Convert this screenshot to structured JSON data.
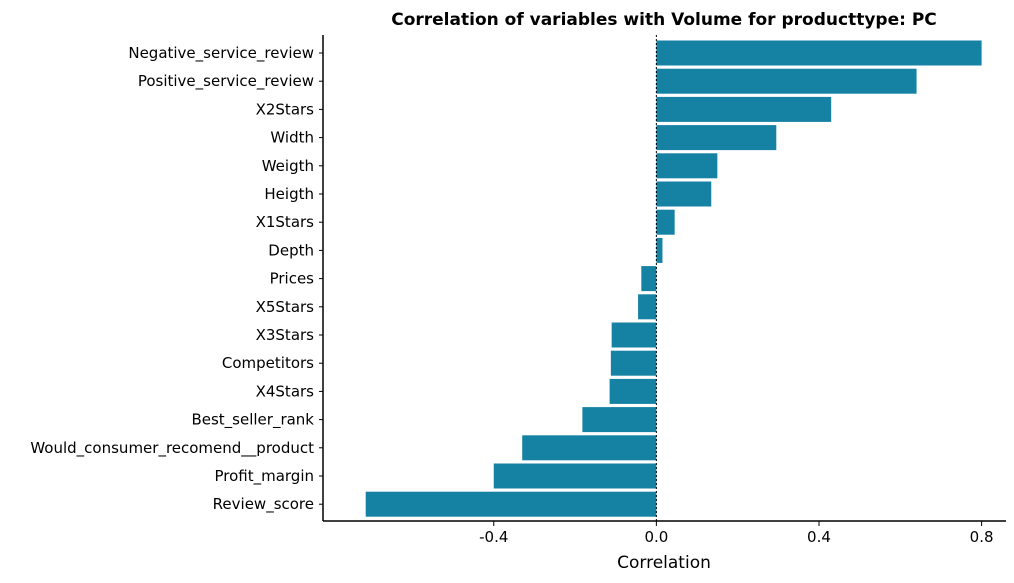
{
  "chart_data": {
    "type": "bar",
    "orientation": "horizontal",
    "title": "Correlation of variables with Volume for producttype:  PC",
    "xlabel": "Correlation",
    "ylabel": "",
    "xlim": [
      -0.82,
      0.86
    ],
    "x_ticks": [
      -0.4,
      0.0,
      0.4,
      0.8
    ],
    "x_tick_labels": [
      "-0.4",
      "0.0",
      "0.4",
      "0.8"
    ],
    "grid": false,
    "reference_line": {
      "x": 0,
      "style": "dotted"
    },
    "bar_color": "#1682a3",
    "categories": [
      "Negative_service_review",
      "Positive_service_review",
      "X2Stars",
      "Width",
      "Weigth",
      "Heigth",
      "X1Stars",
      "Depth",
      "Prices",
      "X5Stars",
      "X3Stars",
      "Competitors",
      "X4Stars",
      "Best_seller_rank",
      "Would_consumer_recomend__product",
      "Profit_margin",
      "Review_score"
    ],
    "values": [
      0.8,
      0.64,
      0.43,
      0.295,
      0.15,
      0.135,
      0.045,
      0.015,
      -0.037,
      -0.045,
      -0.11,
      -0.112,
      -0.115,
      -0.182,
      -0.33,
      -0.4,
      -0.715
    ]
  }
}
